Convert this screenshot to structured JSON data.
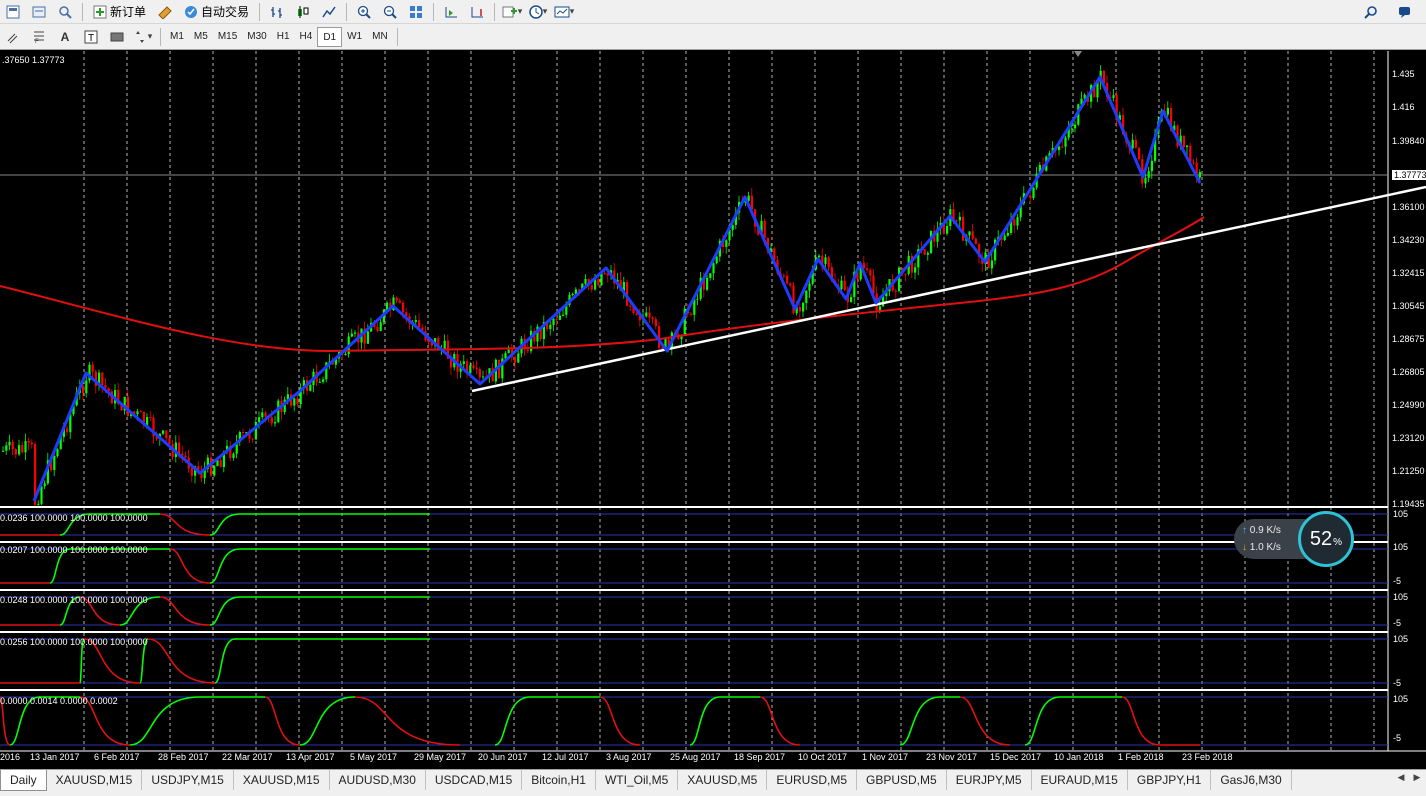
{
  "toolbar": {
    "new_order_label": "新订单",
    "auto_trading_label": "自动交易",
    "timeframes": [
      "M1",
      "M5",
      "M15",
      "M30",
      "H1",
      "H4",
      "D1",
      "W1",
      "MN"
    ],
    "active_timeframe": "D1"
  },
  "chart": {
    "info_text": ".37650 1.37773",
    "current_price": "1.37773",
    "price_labels": [
      "1.435",
      "1.416",
      "1.39840",
      "1.37773",
      "1.36100",
      "1.34230",
      "1.32415",
      "1.30545",
      "1.28675",
      "1.26805",
      "1.24990",
      "1.23120",
      "1.21250",
      "1.19435"
    ],
    "date_labels": [
      "2016",
      "13 Jan 2017",
      "6 Feb 2017",
      "28 Feb 2017",
      "22 Mar 2017",
      "13 Apr 2017",
      "5 May 2017",
      "29 May 2017",
      "20 Jun 2017",
      "12 Jul 2017",
      "3 Aug 2017",
      "25 Aug 2017",
      "18 Sep 2017",
      "10 Oct 2017",
      "1 Nov 2017",
      "23 Nov 2017",
      "15 Dec 2017",
      "10 Jan 2018",
      "1 Feb 2018",
      "23 Feb 2018"
    ],
    "colors": {
      "up_candle": "#00ff00",
      "down_candle": "#ff0000",
      "zigzag": "#1e3cff",
      "moving_average": "#e01010",
      "trendline": "#ffffff",
      "grid": "#ffffff"
    }
  },
  "subwindows": [
    {
      "label": "0.0236 100.0000 100.0000 100.0000",
      "top_level": "105",
      "bottom_level": "-5"
    },
    {
      "label": "0.0207 100.0000 100.0000 100.0000",
      "top_level": "105",
      "bottom_level": "-5"
    },
    {
      "label": "0.0248 100.0000 100.0000 100.0000",
      "top_level": "105",
      "bottom_level": "-5"
    },
    {
      "label": "0.0256 100.0000 100.0000 100.0000",
      "top_level": "105",
      "bottom_level": "-5"
    },
    {
      "label": "0.0000 0.0014 0.0000 0.0002",
      "top_level": "105",
      "bottom_level": "-5"
    }
  ],
  "speed_widget": {
    "upload": "0.9 K/s",
    "download": "1.0 K/s",
    "percent": "52",
    "percent_unit": "%"
  },
  "tabs": [
    "Daily",
    "XAUUSD,M15",
    "USDJPY,M15",
    "XAUUSD,M15",
    "AUDUSD,M30",
    "USDCAD,M15",
    "Bitcoin,H1",
    "WTI_Oil,M5",
    "XAUUSD,M5",
    "EURUSD,M5",
    "GBPUSD,M5",
    "EURJPY,M5",
    "EURAUD,M15",
    "GBPJPY,H1",
    "GasJ6,M30"
  ],
  "active_tab_index": 0
}
